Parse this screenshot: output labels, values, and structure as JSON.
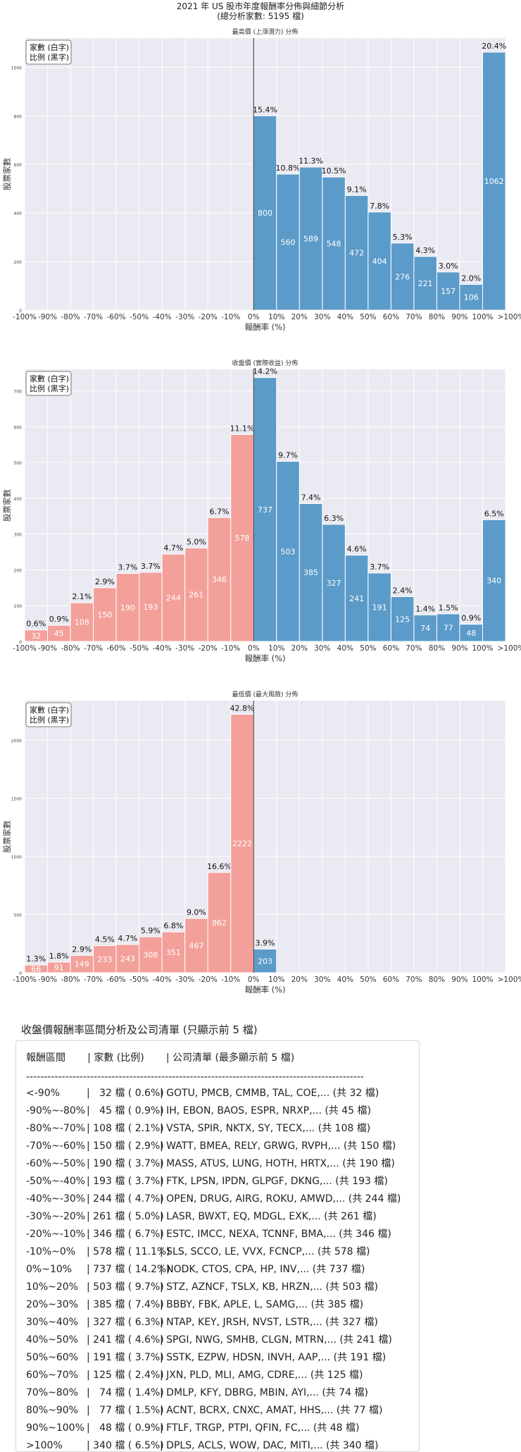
{
  "title": {
    "line1": "2021 年 US 股市年度報酬率分佈與細節分析",
    "line2": "(總分析家數: 5195 檔)"
  },
  "colors": {
    "positive": "#5b9bc9",
    "negative": "#f3a09a",
    "bg": "#eaeaf2",
    "grid": "#ffffff"
  },
  "chart_data": [
    {
      "type": "bar",
      "title": "最高價 (上漲潛力) 分佈",
      "xlabel": "報酬率 (%)",
      "ylabel": "股票家數",
      "legend_line1": "家數 (白字)",
      "legend_line2": "比例 (黑字)",
      "categories": [
        "-100%",
        "-90%",
        "-80%",
        "-70%",
        "-60%",
        "-50%",
        "-40%",
        "-30%",
        "-20%",
        "-10%",
        "0%",
        "10%",
        "20%",
        "30%",
        "40%",
        "50%",
        "60%",
        "70%",
        "80%",
        "90%",
        "100%",
        ">100%"
      ],
      "ylim": [
        0,
        1120
      ],
      "yticks": [
        0,
        200,
        400,
        600,
        800,
        1000
      ],
      "bars": [
        {
          "start": 10,
          "count": 800,
          "pct": "15.4%"
        },
        {
          "start": 11,
          "count": 560,
          "pct": "10.8%"
        },
        {
          "start": 12,
          "count": 589,
          "pct": "11.3%"
        },
        {
          "start": 13,
          "count": 548,
          "pct": "10.5%"
        },
        {
          "start": 14,
          "count": 472,
          "pct": "9.1%"
        },
        {
          "start": 15,
          "count": 404,
          "pct": "7.8%"
        },
        {
          "start": 16,
          "count": 276,
          "pct": "5.3%"
        },
        {
          "start": 17,
          "count": 221,
          "pct": "4.3%"
        },
        {
          "start": 18,
          "count": 157,
          "pct": "3.0%"
        },
        {
          "start": 19,
          "count": 106,
          "pct": "2.0%"
        },
        {
          "start": 20,
          "count": 1062,
          "pct": "20.4%"
        }
      ]
    },
    {
      "type": "bar",
      "title": "收盤價 (實際收益) 分佈",
      "xlabel": "報酬率 (%)",
      "ylabel": "股票家數",
      "legend_line1": "家數 (白字)",
      "legend_line2": "比例 (黑字)",
      "categories": [
        "-100%",
        "-90%",
        "-80%",
        "-70%",
        "-60%",
        "-50%",
        "-40%",
        "-30%",
        "-20%",
        "-10%",
        "0%",
        "10%",
        "20%",
        "30%",
        "40%",
        "50%",
        "60%",
        "70%",
        "80%",
        "90%",
        "100%",
        ">100%"
      ],
      "ylim": [
        0,
        760
      ],
      "yticks": [
        0,
        100,
        200,
        300,
        400,
        500,
        600,
        700
      ],
      "bars": [
        {
          "start": 0,
          "count": 32,
          "pct": "0.6%"
        },
        {
          "start": 1,
          "count": 45,
          "pct": "0.9%"
        },
        {
          "start": 2,
          "count": 108,
          "pct": "2.1%"
        },
        {
          "start": 3,
          "count": 150,
          "pct": "2.9%"
        },
        {
          "start": 4,
          "count": 190,
          "pct": "3.7%"
        },
        {
          "start": 5,
          "count": 193,
          "pct": "3.7%"
        },
        {
          "start": 6,
          "count": 244,
          "pct": "4.7%"
        },
        {
          "start": 7,
          "count": 261,
          "pct": "5.0%"
        },
        {
          "start": 8,
          "count": 346,
          "pct": "6.7%"
        },
        {
          "start": 9,
          "count": 578,
          "pct": "11.1%"
        },
        {
          "start": 10,
          "count": 737,
          "pct": "14.2%"
        },
        {
          "start": 11,
          "count": 503,
          "pct": "9.7%"
        },
        {
          "start": 12,
          "count": 385,
          "pct": "7.4%"
        },
        {
          "start": 13,
          "count": 327,
          "pct": "6.3%"
        },
        {
          "start": 14,
          "count": 241,
          "pct": "4.6%"
        },
        {
          "start": 15,
          "count": 191,
          "pct": "3.7%"
        },
        {
          "start": 16,
          "count": 125,
          "pct": "2.4%"
        },
        {
          "start": 17,
          "count": 74,
          "pct": "1.4%"
        },
        {
          "start": 18,
          "count": 77,
          "pct": "1.5%"
        },
        {
          "start": 19,
          "count": 48,
          "pct": "0.9%"
        },
        {
          "start": 20,
          "count": 340,
          "pct": "6.5%"
        }
      ]
    },
    {
      "type": "bar",
      "title": "最低價 (最大風險) 分佈",
      "xlabel": "報酬率 (%)",
      "ylabel": "股票家數",
      "legend_line1": "家數 (白字)",
      "legend_line2": "比例 (黑字)",
      "categories": [
        "-100%",
        "-90%",
        "-80%",
        "-70%",
        "-60%",
        "-50%",
        "-40%",
        "-30%",
        "-20%",
        "-10%",
        "0%",
        "10%",
        "20%",
        "30%",
        "40%",
        "50%",
        "60%",
        "70%",
        "80%",
        "90%",
        "100%",
        ">100%"
      ],
      "ylim": [
        0,
        2340
      ],
      "yticks": [
        0,
        500,
        1000,
        1500,
        2000
      ],
      "bars": [
        {
          "start": 0,
          "count": 66,
          "pct": "1.3%"
        },
        {
          "start": 1,
          "count": 91,
          "pct": "1.8%"
        },
        {
          "start": 2,
          "count": 149,
          "pct": "2.9%"
        },
        {
          "start": 3,
          "count": 233,
          "pct": "4.5%"
        },
        {
          "start": 4,
          "count": 243,
          "pct": "4.7%"
        },
        {
          "start": 5,
          "count": 308,
          "pct": "5.9%"
        },
        {
          "start": 6,
          "count": 351,
          "pct": "6.8%"
        },
        {
          "start": 7,
          "count": 467,
          "pct": "9.0%"
        },
        {
          "start": 8,
          "count": 862,
          "pct": "16.6%"
        },
        {
          "start": 9,
          "count": 2222,
          "pct": "42.8%"
        },
        {
          "start": 10,
          "count": 203,
          "pct": "3.9%"
        }
      ]
    }
  ],
  "table": {
    "heading": "收盤價報酬率區間分析及公司清單 (只顯示前 5 檔)",
    "header": "報酬區間       | 家數 (比例)       | 公司清單 (最多顯示前 5 檔)",
    "separator": "-----------------------------------------------------------------------------------------------",
    "rows": [
      {
        "range": "<-90%",
        "count": "|   32 檔 ( 0.6%)",
        "list": "| GOTU, PMCB, CMMB, TAL, COE,... (共 32 檔)"
      },
      {
        "range": "-90%~-80%",
        "count": "|   45 檔 ( 0.9%)",
        "list": "| IH, EBON, BAOS, ESPR, NRXP,... (共 45 檔)"
      },
      {
        "range": "-80%~-70%",
        "count": "| 108 檔 ( 2.1%)",
        "list": "| VSTA, SPIR, NKTX, SY, TECX,... (共 108 檔)"
      },
      {
        "range": "-70%~-60%",
        "count": "| 150 檔 ( 2.9%)",
        "list": "| WATT, BMEA, RELY, GRWG, RVPH,... (共 150 檔)"
      },
      {
        "range": "-60%~-50%",
        "count": "| 190 檔 ( 3.7%)",
        "list": "| MASS, ATUS, LUNG, HOTH, HRTX,... (共 190 檔)"
      },
      {
        "range": "-50%~-40%",
        "count": "| 193 檔 ( 3.7%)",
        "list": "| FTK, LPSN, IPDN, GLPGF, DKNG,... (共 193 檔)"
      },
      {
        "range": "-40%~-30%",
        "count": "| 244 檔 ( 4.7%)",
        "list": "| OPEN, DRUG, AIRG, ROKU, AMWD,... (共 244 檔)"
      },
      {
        "range": "-30%~-20%",
        "count": "| 261 檔 ( 5.0%)",
        "list": "| LASR, BWXT, EQ, MDGL, EXK,... (共 261 檔)"
      },
      {
        "range": "-20%~-10%",
        "count": "| 346 檔 ( 6.7%)",
        "list": "| ESTC, IMCC, NEXA, TCNNF, BMA,... (共 346 檔)"
      },
      {
        "range": "-10%~0%",
        "count": "| 578 檔 ( 11.1%)",
        "list": "| SLS, SCCO, LE, VVX, FCNCP,... (共 578 檔)"
      },
      {
        "range": "0%~10%",
        "count": "| 737 檔 ( 14.2%)",
        "list": "| NODK, CTOS, CPA, HP, INV,... (共 737 檔)"
      },
      {
        "range": "10%~20%",
        "count": "| 503 檔 ( 9.7%)",
        "list": "| STZ, AZNCF, TSLX, KB, HRZN,... (共 503 檔)"
      },
      {
        "range": "20%~30%",
        "count": "| 385 檔 ( 7.4%)",
        "list": "| BBBY, FBK, APLE, L, SAMG,... (共 385 檔)"
      },
      {
        "range": "30%~40%",
        "count": "| 327 檔 ( 6.3%)",
        "list": "| NTAP, KEY, JRSH, NVST, LSTR,... (共 327 檔)"
      },
      {
        "range": "40%~50%",
        "count": "| 241 檔 ( 4.6%)",
        "list": "| SPGI, NWG, SMHB, CLGN, MTRN,... (共 241 檔)"
      },
      {
        "range": "50%~60%",
        "count": "| 191 檔 ( 3.7%)",
        "list": "| SSTK, EZPW, HDSN, INVH, AAP,... (共 191 檔)"
      },
      {
        "range": "60%~70%",
        "count": "| 125 檔 ( 2.4%)",
        "list": "| JXN, PLD, MLI, AMG, CDRE,... (共 125 檔)"
      },
      {
        "range": "70%~80%",
        "count": "|   74 檔 ( 1.4%)",
        "list": "| DMLP, KFY, DBRG, MBIN, AYI,... (共 74 檔)"
      },
      {
        "range": "80%~90%",
        "count": "|   77 檔 ( 1.5%)",
        "list": "| ACNT, BCRX, CNXC, AMAT, HHS,... (共 77 檔)"
      },
      {
        "range": "90%~100%",
        "count": "|   48 檔 ( 0.9%)",
        "list": "| FTLF, TRGP, PTPI, QFIN, FC,... (共 48 檔)"
      },
      {
        "range": ">100%",
        "count": "| 340 檔 ( 6.5%)",
        "list": "| DPLS, ACLS, WOW, DAC, MITI,... (共 340 檔)"
      }
    ]
  }
}
